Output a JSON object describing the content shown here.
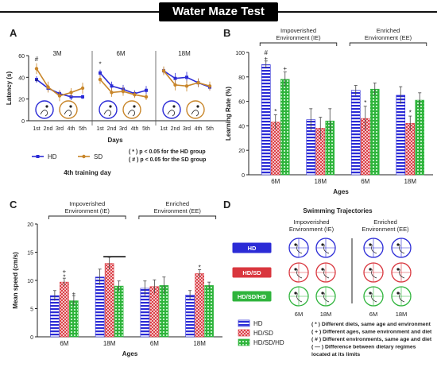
{
  "header": {
    "title": "Water Maze Test"
  },
  "colors": {
    "hd": "#2b2bd6",
    "sd": "#c8862a",
    "hdsd": "#d9363e",
    "hdsdhd": "#2fb43c",
    "ink": "#222222"
  },
  "panel_letters": [
    "A",
    "B",
    "C",
    "D"
  ],
  "chart_data": [
    {
      "id": "A",
      "type": "line",
      "ylabel": "Latency (s)",
      "xlabel": "Days",
      "subtitle": "4th training day",
      "ylim": [
        0,
        60
      ],
      "yticks": [
        "0",
        "20",
        "40",
        "60"
      ],
      "x": [
        "1st",
        "2nd",
        "3rd",
        "4th",
        "5th"
      ],
      "groups": [
        {
          "label": "3M",
          "series": [
            {
              "name": "HD",
              "values": [
                38,
                30,
                25,
                22,
                22
              ],
              "err": [
                3,
                3,
                3,
                3,
                2
              ]
            },
            {
              "name": "SD",
              "values": [
                48,
                31,
                23,
                26,
                30
              ],
              "err": [
                5,
                5,
                5,
                4,
                5
              ]
            }
          ],
          "marks": [
            {
              "text": "#",
              "x": 0,
              "y": 55
            },
            {
              "text": "*",
              "x": 0,
              "y": 34
            }
          ]
        },
        {
          "label": "6M",
          "series": [
            {
              "name": "HD",
              "values": [
                44,
                32,
                29,
                25,
                28
              ],
              "err": [
                3,
                4,
                4,
                3,
                4
              ]
            },
            {
              "name": "SD",
              "values": [
                38,
                26,
                27,
                24,
                22
              ],
              "err": [
                4,
                4,
                4,
                3,
                3
              ]
            }
          ],
          "marks": [
            {
              "text": "*",
              "x": 0,
              "y": 50
            }
          ]
        },
        {
          "label": "18M",
          "series": [
            {
              "name": "HD",
              "values": [
                46,
                39,
                40,
                35,
                31
              ],
              "err": [
                3,
                5,
                5,
                4,
                3
              ]
            },
            {
              "name": "SD",
              "values": [
                46,
                33,
                32,
                35,
                32
              ],
              "err": [
                4,
                5,
                5,
                4,
                4
              ]
            }
          ],
          "marks": []
        }
      ],
      "legend": [
        {
          "name": "HD"
        },
        {
          "name": "SD"
        }
      ],
      "notes": [
        "( * ) p < 0.05 for the HD group",
        "( # ) p < 0.05 for the SD group"
      ]
    },
    {
      "id": "B",
      "type": "bar",
      "ylabel": "Learning Rate (%)",
      "xlabel": "Ages",
      "ylim": [
        0,
        100
      ],
      "yticks": [
        "0",
        "20",
        "40",
        "60",
        "80",
        "100"
      ],
      "brackets": [
        "Impoverished\nEnvironment (IE)",
        "Enriched\nEnvironment (EE)"
      ],
      "categories": [
        "6M",
        "18M",
        "6M",
        "18M"
      ],
      "series": [
        {
          "name": "HD",
          "values": [
            90,
            45,
            69,
            65
          ],
          "err": [
            3,
            9,
            4,
            7
          ]
        },
        {
          "name": "HD/SD",
          "values": [
            43,
            38,
            46,
            42
          ],
          "err": [
            6,
            9,
            10,
            6
          ]
        },
        {
          "name": "HD/SD/HD",
          "values": [
            78,
            44,
            70,
            61
          ],
          "err": [
            6,
            10,
            5,
            6
          ]
        }
      ],
      "marks": [
        {
          "text": "#",
          "cat": 0,
          "s": 0,
          "y": 100
        },
        {
          "text": "+",
          "cat": 0,
          "s": 0,
          "y": 95
        },
        {
          "text": "*",
          "cat": 0,
          "s": 1,
          "y": 52
        },
        {
          "text": "+",
          "cat": 0,
          "s": 2,
          "y": 87
        },
        {
          "text": "*",
          "cat": 2,
          "s": 1,
          "y": 59
        },
        {
          "text": "*",
          "cat": 3,
          "s": 1,
          "y": 51
        }
      ]
    },
    {
      "id": "C",
      "type": "bar",
      "ylabel": "Mean speed (cm/s)",
      "xlabel": "Ages",
      "ylim": [
        0,
        20
      ],
      "yticks": [
        "0",
        "5",
        "10",
        "15",
        "20"
      ],
      "brackets": [
        "Impoverished\nEnvironment (IE)",
        "Enriched\nEnvironment (EE)"
      ],
      "categories": [
        "6M",
        "18M",
        "6M",
        "18M"
      ],
      "series": [
        {
          "name": "HD",
          "values": [
            7.3,
            10.6,
            8.6,
            7.4
          ],
          "err": [
            0.9,
            1.4,
            1.3,
            0.8
          ]
        },
        {
          "name": "HD/SD",
          "values": [
            9.7,
            13.0,
            8.9,
            11.2
          ],
          "err": [
            0.7,
            1.1,
            1.2,
            0.7
          ]
        },
        {
          "name": "HD/SD/HD",
          "values": [
            6.4,
            9.0,
            9.1,
            9.1
          ],
          "err": [
            0.9,
            0.9,
            1.5,
            0.6
          ]
        }
      ],
      "marks": [
        {
          "text": "+",
          "cat": 0,
          "s": 1,
          "y": 11.6
        },
        {
          "text": "*",
          "cat": 0,
          "s": 1,
          "y": 10.6
        },
        {
          "text": "+",
          "cat": 0,
          "s": 2,
          "y": 7.7
        },
        {
          "text": "*",
          "cat": 3,
          "s": 1,
          "y": 12.3
        }
      ],
      "limit_line": {
        "cat": 1,
        "y": 14.2
      }
    }
  ],
  "panelD": {
    "title": "Swimming Trajectories",
    "env_ie": "Impoverished\nEnvironment (IE)",
    "env_ee": "Enriched\nEnvironment (EE)",
    "rows": [
      {
        "label": "HD"
      },
      {
        "label": "HD/SD"
      },
      {
        "label": "HD/SD/HD"
      }
    ],
    "ages": [
      "6M",
      "18M",
      "6M",
      "18M"
    ]
  },
  "legend_bottom": {
    "items": [
      {
        "name": "HD"
      },
      {
        "name": "HD/SD"
      },
      {
        "name": "HD/SD/HD"
      }
    ],
    "notes": [
      "( * )  Different diets, same age and environment",
      "( + )  Different ages, same environment and diet",
      "( # )  Different environments, same age and diet",
      "(  —  )  Difference between dietary regimes",
      "located at its limits"
    ]
  }
}
